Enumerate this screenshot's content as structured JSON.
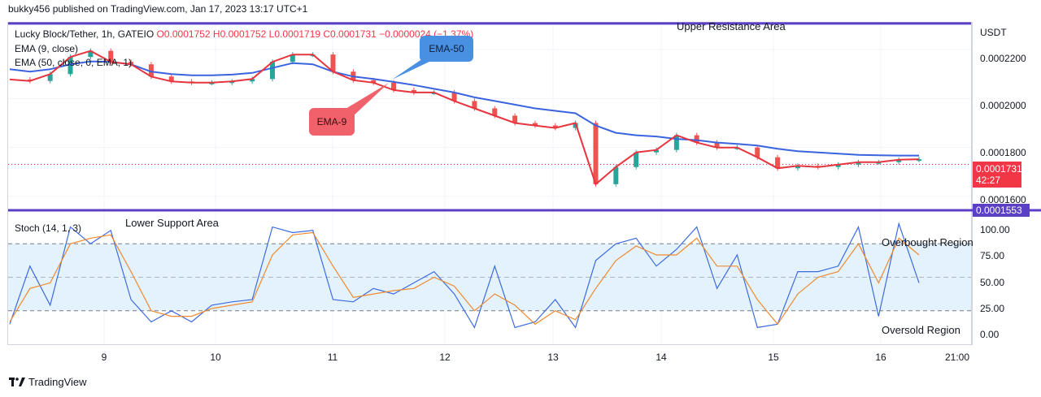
{
  "header": {
    "publisher_text": "bukky456 published on TradingView.com, Jan 17, 2023 13:17 UTC+1"
  },
  "colors": {
    "up": "#26a69a",
    "down": "#ef5350",
    "ema9": "#e8343f",
    "ema50": "#3a63e0",
    "resistance": "#5b3fc4",
    "stoch_k": "#3d6be0",
    "stoch_d": "#f0892f",
    "band_fill": "#e3f2fd"
  },
  "legend": {
    "symbol_line": "Lucky Block/Tether, 1h, GATEIO",
    "ohlc_values": "O0.0001752  H0.0001752  L0.0001719  C0.0001731  −0.0000024 (−1.37%)",
    "ema9": "EMA (9, close)",
    "ema50": "EMA (50, close, 0, EMA, 1)",
    "stoch": "Stoch (14, 1, 3)"
  },
  "annotations": {
    "upper_resistance": "Upper Resistance Area",
    "lower_support": "Lower Support Area",
    "ema50_callout": "EMA-50",
    "ema9_callout": "EMA-9",
    "overbought": "Overbought Region",
    "oversold": "Oversold Region"
  },
  "price_axis": {
    "unit": "USDT",
    "ticks": [
      "0.0002200",
      "0.0002000",
      "0.0001800",
      "0.0001600"
    ]
  },
  "stoch_axis": {
    "ticks": [
      "100.00",
      "75.00",
      "50.00",
      "25.00",
      "0.00"
    ]
  },
  "time_axis": {
    "ticks": [
      "9",
      "10",
      "11",
      "12",
      "13",
      "14",
      "15",
      "16",
      "21:00"
    ]
  },
  "last_price": {
    "value": "0.0001731",
    "countdown": "42:27"
  },
  "support_level": {
    "value": "0.0001553"
  },
  "branding": {
    "name": "TradingView"
  },
  "chart_data": [
    {
      "type": "line",
      "title": "Lucky Block/Tether, 1h, GATEIO",
      "ylim": [
        0.000155,
        0.000231
      ],
      "levels": {
        "upper_resistance": 0.0002307,
        "lower_support": 0.0001553,
        "last_close": 0.0001731
      },
      "x": [
        "Jan 8 20:00",
        "Jan 9 00:00",
        "Jan 9 04:00",
        "Jan 9 08:00",
        "Jan 9 12:00",
        "Jan 9 16:00",
        "Jan 9 20:00",
        "Jan 10 00:00",
        "Jan 10 04:00",
        "Jan 10 08:00",
        "Jan 10 12:00",
        "Jan 10 16:00",
        "Jan 10 20:00",
        "Jan 11 00:00",
        "Jan 11 04:00",
        "Jan 11 08:00",
        "Jan 11 12:00",
        "Jan 11 16:00",
        "Jan 11 20:00",
        "Jan 12 00:00",
        "Jan 12 04:00",
        "Jan 12 08:00",
        "Jan 12 12:00",
        "Jan 12 16:00",
        "Jan 12 20:00",
        "Jan 13 00:00",
        "Jan 13 04:00",
        "Jan 13 08:00",
        "Jan 13 12:00",
        "Jan 13 16:00",
        "Jan 13 20:00",
        "Jan 14 00:00",
        "Jan 14 04:00",
        "Jan 14 08:00",
        "Jan 14 12:00",
        "Jan 14 16:00",
        "Jan 14 20:00",
        "Jan 15 00:00",
        "Jan 15 04:00",
        "Jan 15 08:00",
        "Jan 15 12:00",
        "Jan 15 16:00",
        "Jan 15 20:00",
        "Jan 16 00:00",
        "Jan 16 04:00",
        "Jan 16 08:00"
      ],
      "series": [
        {
          "name": "EMA (9, close)",
          "values": [
            0.0002078,
            0.0002072,
            0.00021,
            0.000217,
            0.0002195,
            0.000215,
            0.000214,
            0.000209,
            0.000207,
            0.0002065,
            0.0002065,
            0.000207,
            0.000208,
            0.000215,
            0.000218,
            0.000218,
            0.000211,
            0.0002075,
            0.0002065,
            0.0002035,
            0.0002025,
            0.0002025,
            0.000199,
            0.000196,
            0.000193,
            0.00019,
            0.000189,
            0.000188,
            0.00019,
            0.000165,
            0.000172,
            0.000178,
            0.000179,
            0.000185,
            0.000182,
            0.00018,
            0.00018,
            0.000176,
            0.0001715,
            0.0001725,
            0.000172,
            0.000173,
            0.000174,
            0.000174,
            0.000175,
            0.0001752
          ]
        },
        {
          "name": "EMA (50, close, 0, EMA, 1)",
          "values": [
            0.000212,
            0.000211,
            0.000212,
            0.000214,
            0.0002152,
            0.000215,
            0.000214,
            0.000211,
            0.00021,
            0.0002095,
            0.0002095,
            0.0002098,
            0.0002105,
            0.0002125,
            0.0002145,
            0.000214,
            0.000211,
            0.000209,
            0.000208,
            0.0002068,
            0.0002055,
            0.000204,
            0.0002025,
            0.0002005,
            0.000199,
            0.0001975,
            0.000196,
            0.000195,
            0.000194,
            0.000189,
            0.000186,
            0.000185,
            0.0001845,
            0.0001835,
            0.000183,
            0.000182,
            0.0001815,
            0.0001808,
            0.0001795,
            0.0001785,
            0.000178,
            0.0001775,
            0.000177,
            0.0001768,
            0.0001767,
            0.0001767
          ]
        }
      ]
    },
    {
      "type": "line",
      "title": "Stoch (14, 1, 3)",
      "ylim": [
        -10,
        110
      ],
      "levels": {
        "overbought": 80,
        "middle": 50,
        "oversold": 20
      },
      "x": [
        "Jan 8 20:00",
        "Jan 9 00:00",
        "Jan 9 04:00",
        "Jan 9 08:00",
        "Jan 9 12:00",
        "Jan 9 16:00",
        "Jan 9 20:00",
        "Jan 10 00:00",
        "Jan 10 04:00",
        "Jan 10 08:00",
        "Jan 10 12:00",
        "Jan 10 16:00",
        "Jan 10 20:00",
        "Jan 11 00:00",
        "Jan 11 04:00",
        "Jan 11 08:00",
        "Jan 11 12:00",
        "Jan 11 16:00",
        "Jan 11 20:00",
        "Jan 12 00:00",
        "Jan 12 04:00",
        "Jan 12 08:00",
        "Jan 12 12:00",
        "Jan 12 16:00",
        "Jan 12 20:00",
        "Jan 13 00:00",
        "Jan 13 04:00",
        "Jan 13 08:00",
        "Jan 13 12:00",
        "Jan 13 16:00",
        "Jan 13 20:00",
        "Jan 14 00:00",
        "Jan 14 04:00",
        "Jan 14 08:00",
        "Jan 14 12:00",
        "Jan 14 16:00",
        "Jan 14 20:00",
        "Jan 15 00:00",
        "Jan 15 04:00",
        "Jan 15 08:00",
        "Jan 15 12:00",
        "Jan 15 16:00",
        "Jan 15 20:00",
        "Jan 16 00:00",
        "Jan 16 04:00",
        "Jan 16 08:00"
      ],
      "series": [
        {
          "name": "%K",
          "values": [
            8,
            60,
            25,
            95,
            80,
            92,
            30,
            10,
            20,
            10,
            25,
            28,
            30,
            95,
            90,
            92,
            30,
            28,
            40,
            35,
            45,
            55,
            35,
            5,
            60,
            5,
            10,
            30,
            5,
            65,
            80,
            85,
            60,
            75,
            95,
            40,
            70,
            5,
            8,
            55,
            55,
            60,
            95,
            15,
            98,
            45
          ]
        },
        {
          "name": "%D",
          "values": [
            10,
            40,
            45,
            80,
            85,
            88,
            55,
            20,
            15,
            15,
            22,
            25,
            28,
            70,
            88,
            90,
            60,
            32,
            35,
            38,
            40,
            50,
            42,
            20,
            35,
            25,
            8,
            20,
            12,
            40,
            65,
            78,
            70,
            70,
            85,
            60,
            60,
            30,
            8,
            35,
            50,
            55,
            80,
            45,
            85,
            70
          ]
        }
      ]
    }
  ]
}
